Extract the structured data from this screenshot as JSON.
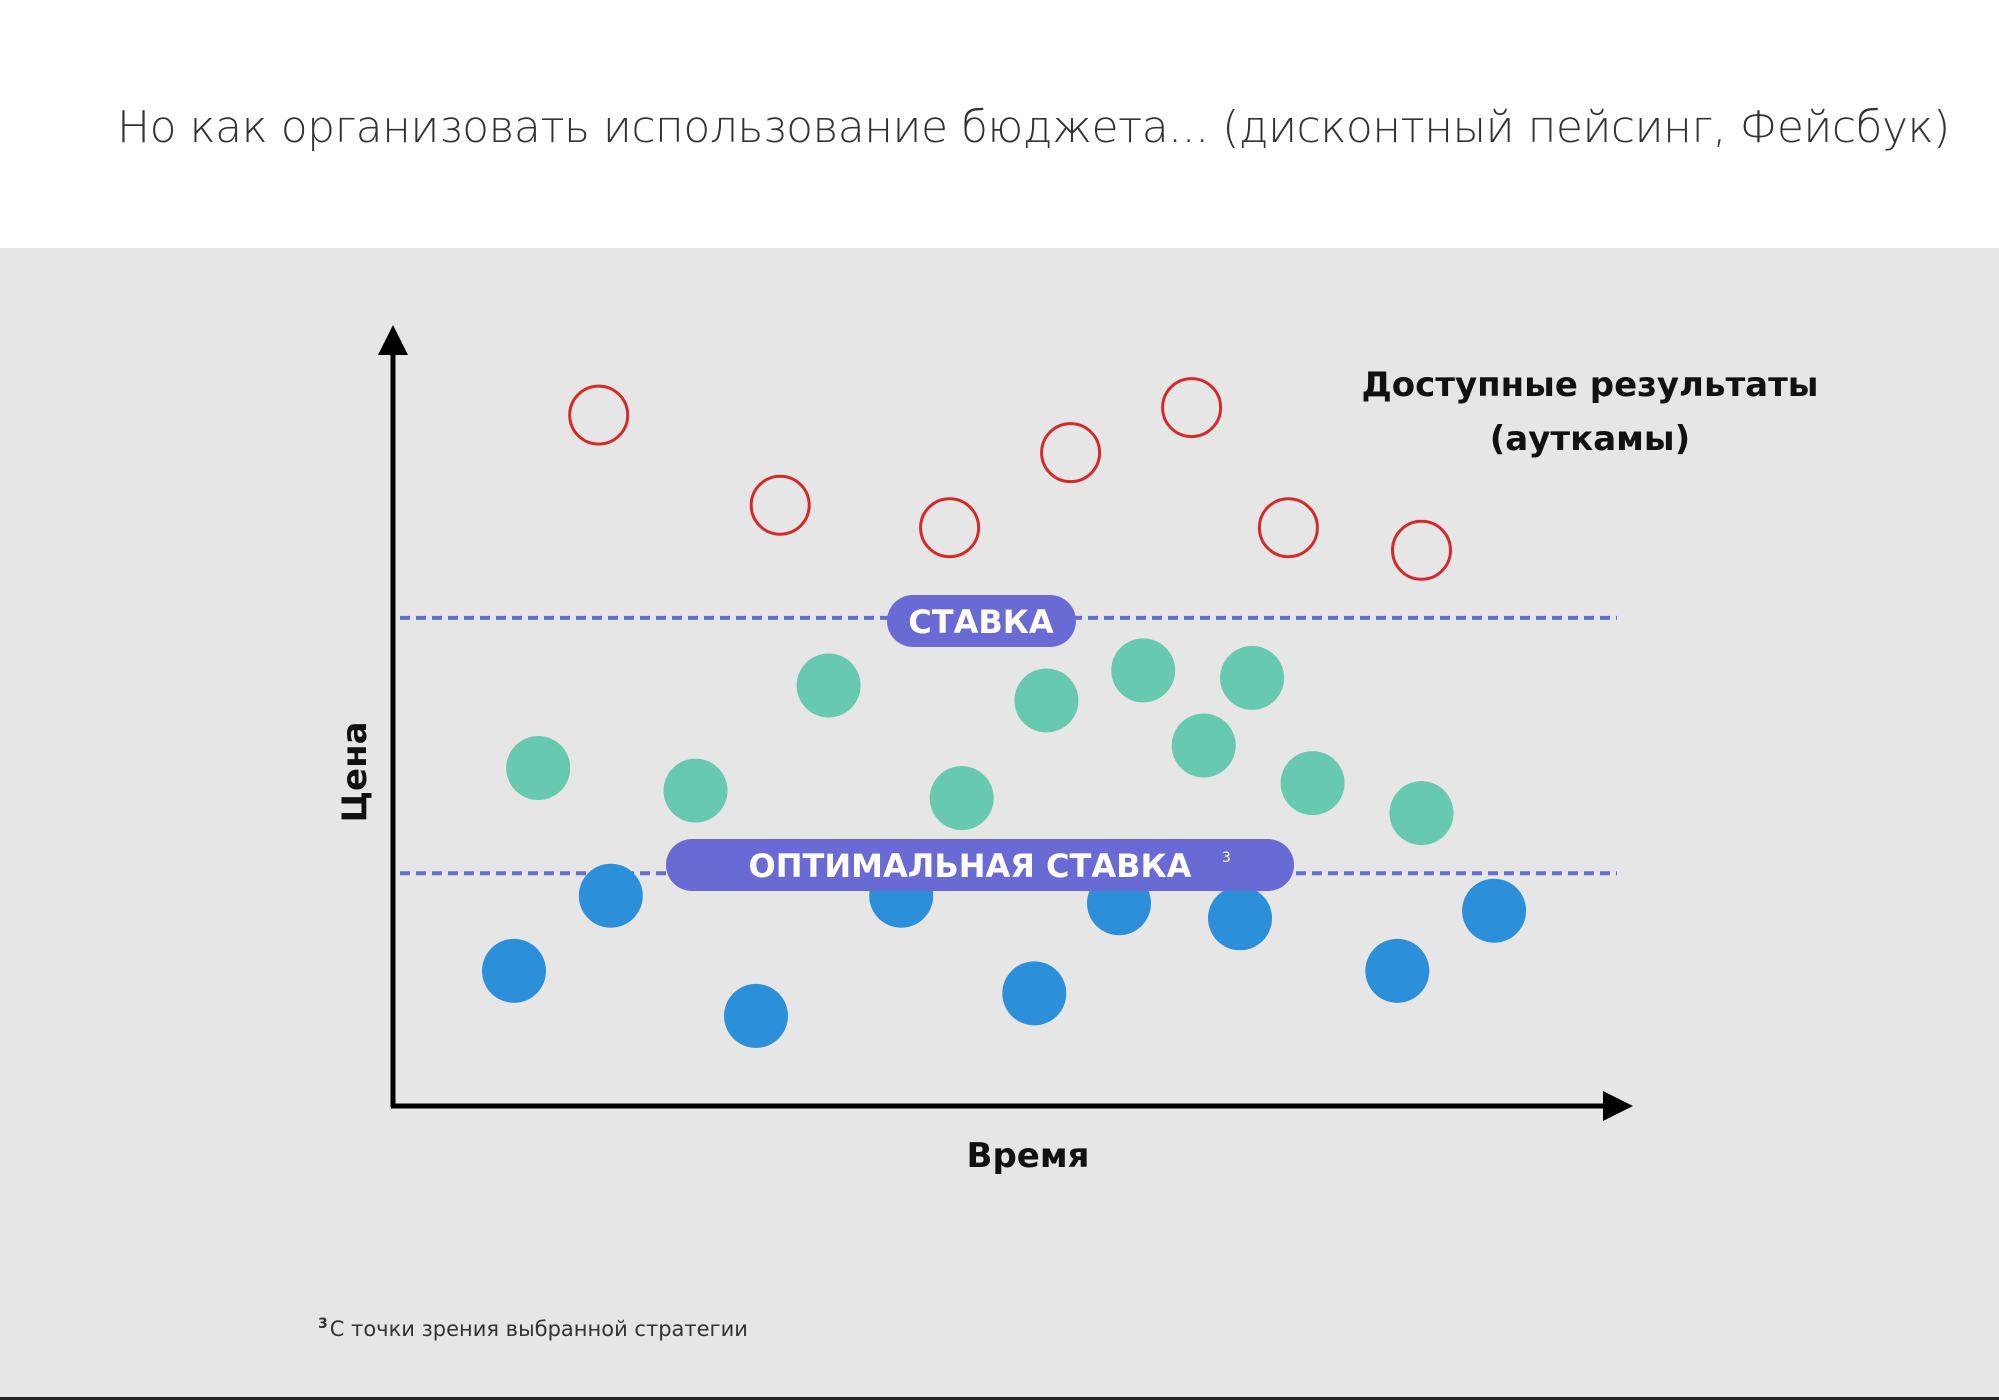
{
  "title": "Но как организовать использование бюджета... (дисконтный пейсинг, Фейсбук)",
  "footnote": {
    "marker": "3",
    "text": "С точки зрения выбранной стратегии"
  },
  "colors": {
    "background": "#ffffff",
    "panel": "#e6e6e6",
    "axis": "#000000",
    "unavailable": "#d42a2a",
    "won": "#66c9b0",
    "optimal": "#2b8fda",
    "bid_line": "#6a6ad4",
    "bid_label_bg": "#6a6ad4"
  },
  "chart_data": {
    "type": "scatter",
    "xlabel": "Время",
    "ylabel": "Цена",
    "legend": [
      "Доступные результаты",
      "(ауткамы)"
    ],
    "grid": false,
    "xlim": [
      0,
      100
    ],
    "ylim": [
      0,
      100
    ],
    "lines": [
      {
        "label": "СТАВКА",
        "superscript": "",
        "y": 65,
        "style": "dashed"
      },
      {
        "label": "ОПТИМАЛЬНАЯ СТАВКА",
        "superscript": "3",
        "y": 31,
        "style": "dashed"
      }
    ],
    "series": [
      {
        "group": "above-bid",
        "marker": "hollow-circle",
        "color": "#d42a2a",
        "points": [
          {
            "x": 17,
            "y": 92
          },
          {
            "x": 32,
            "y": 80
          },
          {
            "x": 46,
            "y": 77
          },
          {
            "x": 56,
            "y": 87
          },
          {
            "x": 66,
            "y": 93
          },
          {
            "x": 74,
            "y": 77
          },
          {
            "x": 85,
            "y": 74
          }
        ]
      },
      {
        "group": "between-bids",
        "marker": "filled-circle",
        "color": "#66c9b0",
        "points": [
          {
            "x": 12,
            "y": 45
          },
          {
            "x": 25,
            "y": 42
          },
          {
            "x": 36,
            "y": 56
          },
          {
            "x": 47,
            "y": 41
          },
          {
            "x": 54,
            "y": 54
          },
          {
            "x": 62,
            "y": 58
          },
          {
            "x": 67,
            "y": 48
          },
          {
            "x": 71,
            "y": 57
          },
          {
            "x": 76,
            "y": 43
          },
          {
            "x": 85,
            "y": 39
          }
        ]
      },
      {
        "group": "below-optimal",
        "marker": "filled-circle",
        "color": "#2b8fda",
        "points": [
          {
            "x": 10,
            "y": 18
          },
          {
            "x": 18,
            "y": 28
          },
          {
            "x": 30,
            "y": 12
          },
          {
            "x": 42,
            "y": 28
          },
          {
            "x": 53,
            "y": 15
          },
          {
            "x": 60,
            "y": 27
          },
          {
            "x": 70,
            "y": 25
          },
          {
            "x": 83,
            "y": 18
          },
          {
            "x": 91,
            "y": 26
          }
        ]
      }
    ]
  }
}
